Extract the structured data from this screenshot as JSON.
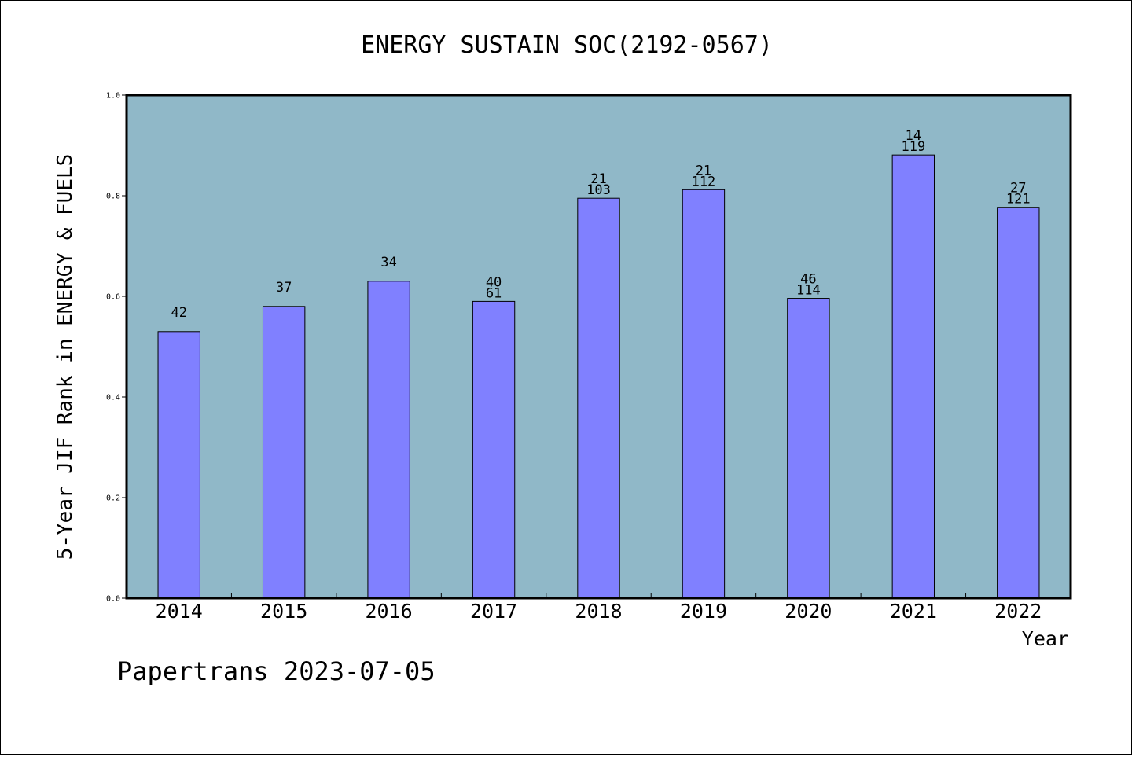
{
  "chart_data": {
    "type": "bar",
    "title": "ENERGY SUSTAIN SOC(2192-0567)",
    "xlabel": "Year",
    "ylabel": "5-Year JIF Rank in ENERGY & FUELS",
    "ylim": [
      0,
      1.0
    ],
    "yticks": [
      "0.0",
      "0.2",
      "0.4",
      "0.6",
      "0.8",
      "1.0"
    ],
    "categories": [
      "2014",
      "2015",
      "2016",
      "2017",
      "2018",
      "2019",
      "2020",
      "2021",
      "2022"
    ],
    "values": [
      0.53,
      0.58,
      0.63,
      0.59,
      0.795,
      0.812,
      0.596,
      0.881,
      0.777
    ],
    "labels_top": [
      "42",
      "37",
      "34",
      "40",
      "21",
      "21",
      "46",
      "14",
      "27"
    ],
    "labels_bottom": [
      "",
      "",
      "",
      "61",
      "103",
      "112",
      "114",
      "119",
      "121"
    ],
    "grid": false,
    "legend": "none",
    "colors": {
      "plot_background": "#90b8c8",
      "bar_fill": "#8080ff",
      "bar_stroke": "#000000"
    }
  },
  "footer": "Papertrans 2023-07-05"
}
